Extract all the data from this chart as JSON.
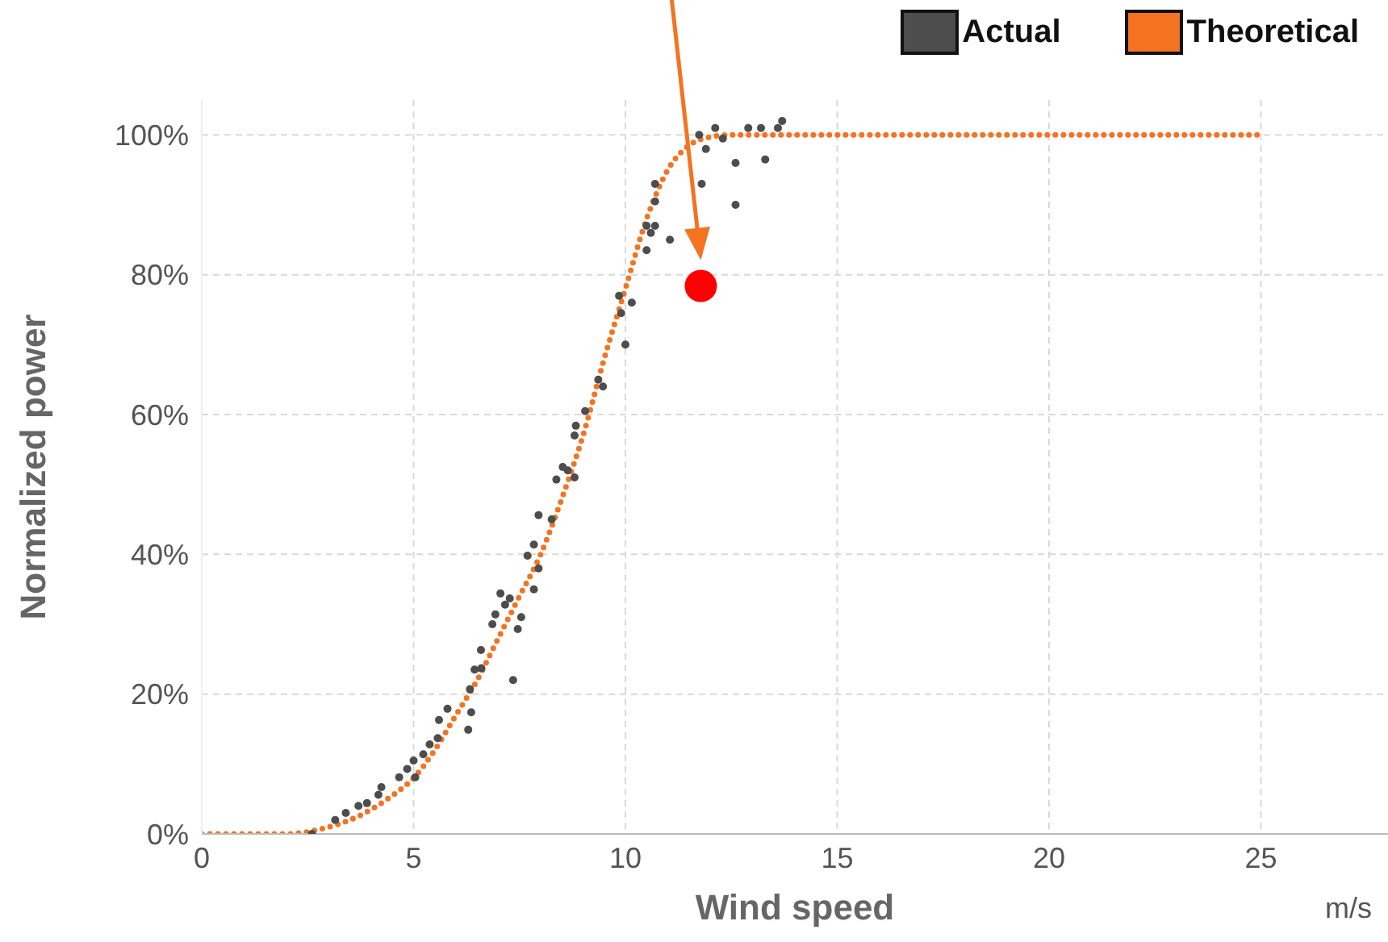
{
  "chart_data": {
    "type": "scatter",
    "xlabel": "Wind speed",
    "ylabel": "Normalized power",
    "annotations": [
      "m/s"
    ],
    "xlim": [
      0,
      28
    ],
    "xticks": [
      0,
      5,
      10,
      15,
      20,
      25
    ],
    "ylim": [
      0,
      105
    ],
    "yticks": [
      {
        "value": 0,
        "label": "0%"
      },
      {
        "value": 20,
        "label": "20%"
      },
      {
        "value": 40,
        "label": "40%"
      },
      {
        "value": 60,
        "label": "60%"
      },
      {
        "value": 80,
        "label": "80%"
      },
      {
        "value": 100,
        "label": "100%"
      }
    ],
    "grid": true,
    "legend": "top right",
    "marker": "circle",
    "series": [
      {
        "name": "Actual",
        "color": "#4d4d4d",
        "x": [
          2.6,
          3.15,
          3.4,
          3.7,
          3.9,
          4.17,
          4.24,
          4.66,
          4.85,
          5,
          5.04,
          5.23,
          5.38,
          5.57,
          5.6,
          5.8,
          6.29,
          6.36,
          6.33,
          6.44,
          6.6,
          6.59,
          6.86,
          6.93,
          7.05,
          7.16,
          7.27,
          7.35,
          7.46,
          7.54,
          7.69,
          7.84,
          7.84,
          7.95,
          7.95,
          8.26,
          8.37,
          8.52,
          8.64,
          8.8,
          8.8,
          8.83,
          9.05,
          9.36,
          9.47,
          9.85,
          9.9,
          10.0,
          10.15,
          10.5,
          10.5,
          10.6,
          10.7,
          10.7,
          10.7,
          11.05,
          11.74,
          11.8,
          11.9,
          12.12,
          12.3,
          12.6,
          12.6,
          12.9,
          13.2,
          13.3,
          13.6,
          13.7
        ],
        "values": [
          0,
          2,
          3,
          4,
          4.4,
          5.6,
          6.7,
          8.1,
          9.3,
          10.5,
          8.1,
          11.4,
          12.8,
          13.7,
          16.3,
          17.9,
          14.9,
          17.4,
          20.7,
          23.5,
          23.7,
          26.3,
          30,
          31.4,
          34.4,
          32.8,
          33.7,
          22,
          29.3,
          31,
          39.8,
          41.4,
          35,
          45.6,
          38,
          45,
          50.7,
          52.5,
          52,
          57,
          51,
          58.4,
          60.5,
          65,
          64,
          77,
          74.5,
          70,
          76,
          87,
          83.5,
          86,
          93,
          90.5,
          87,
          85,
          100,
          93,
          98,
          101,
          99.5,
          96,
          90,
          101,
          101,
          96.5,
          101,
          102
        ]
      },
      {
        "name": "Theoretical",
        "type": "line",
        "line_style": "dotted",
        "marker": "none",
        "color": "#f47321",
        "x": [
          0,
          1,
          2,
          2.5,
          3,
          3.5,
          4,
          4.5,
          5,
          5.5,
          6,
          6.5,
          7,
          7.5,
          8,
          8.5,
          9,
          9.5,
          10,
          10.5,
          11,
          11.5,
          12,
          12.5,
          13,
          25
        ],
        "values": [
          0,
          0,
          0,
          0.3,
          1,
          2,
          3.5,
          5.5,
          8,
          12,
          17,
          22,
          28,
          34,
          40,
          48,
          57,
          68,
          78,
          88,
          95,
          98.5,
          99.7,
          100,
          100,
          100
        ]
      },
      {
        "type": "scatter",
        "marker": "circle",
        "color": "#ff0000",
        "x": [
          11.78
        ],
        "values": [
          78.4
        ]
      }
    ]
  }
}
